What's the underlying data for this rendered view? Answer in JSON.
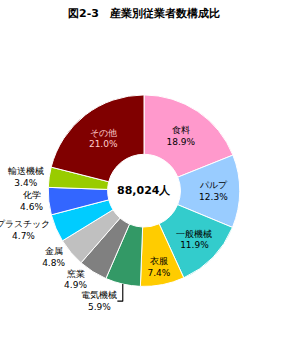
{
  "chart_data": {
    "type": "pie",
    "title": "図2-3　産業別従業者数構成比",
    "categories": [
      "食料",
      "パルプ",
      "一般機械",
      "衣服",
      "電気機械",
      "窯業",
      "金属",
      "プラスチック",
      "化学",
      "輸送機械",
      "その他"
    ],
    "values": [
      18.9,
      12.3,
      11.9,
      7.4,
      5.9,
      4.9,
      4.8,
      4.7,
      4.6,
      3.4,
      21.0
    ],
    "value_labels": [
      "18.9%",
      "12.3%",
      "11.9%",
      "7.4%",
      "5.9%",
      "4.9%",
      "4.8%",
      "4.7%",
      "4.6%",
      "3.4%",
      "21.0%"
    ],
    "colors": [
      "#ff99cc",
      "#99ccff",
      "#33cccc",
      "#ffcc00",
      "#339966",
      "#808080",
      "#c0c0c0",
      "#00ccff",
      "#3366ff",
      "#99cc00",
      "#800000"
    ],
    "annotations": [
      "88,024人"
    ],
    "data_labels": true
  }
}
